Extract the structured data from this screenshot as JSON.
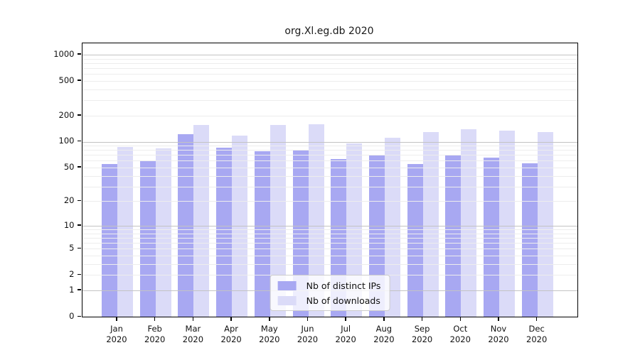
{
  "title": "org.Xl.eg.db 2020",
  "colors": {
    "distinct_ips_bar": "#a8a8f2",
    "downloads_bar": "#dbdbf8",
    "grid_major": "#c3c3c3",
    "grid_minor": "#ededed",
    "axis": "#000000",
    "legend_border": "#cccccc"
  },
  "legend": {
    "position": "lower center",
    "items": [
      {
        "label": "Nb of distinct IPs",
        "color_key": "distinct_ips_bar"
      },
      {
        "label": "Nb of downloads",
        "color_key": "downloads_bar"
      }
    ]
  },
  "chart_data": {
    "type": "bar",
    "title": "org.Xl.eg.db 2020",
    "categories": [
      "Jan 2020",
      "Feb 2020",
      "Mar 2020",
      "Apr 2020",
      "May 2020",
      "Jun 2020",
      "Jul 2020",
      "Aug 2020",
      "Sep 2020",
      "Oct 2020",
      "Nov 2020",
      "Dec 2020"
    ],
    "series": [
      {
        "name": "Nb of distinct IPs",
        "color_key": "distinct_ips_bar",
        "values": [
          55,
          59,
          122,
          85,
          78,
          80,
          63,
          69,
          55,
          70,
          65,
          56
        ]
      },
      {
        "name": "Nb of downloads",
        "color_key": "downloads_bar",
        "values": [
          86,
          83,
          155,
          118,
          155,
          158,
          96,
          110,
          130,
          138,
          133,
          128
        ]
      }
    ],
    "xlabel": "",
    "ylabel": "",
    "y_scale": "log1p",
    "y_ticks": [
      0,
      1,
      2,
      5,
      10,
      20,
      50,
      100,
      200,
      500,
      1000
    ],
    "y_major_gridlines": [
      1,
      10,
      100,
      1000
    ],
    "ylim": [
      0,
      1280
    ],
    "grid": true,
    "legend_position": "lower center"
  }
}
